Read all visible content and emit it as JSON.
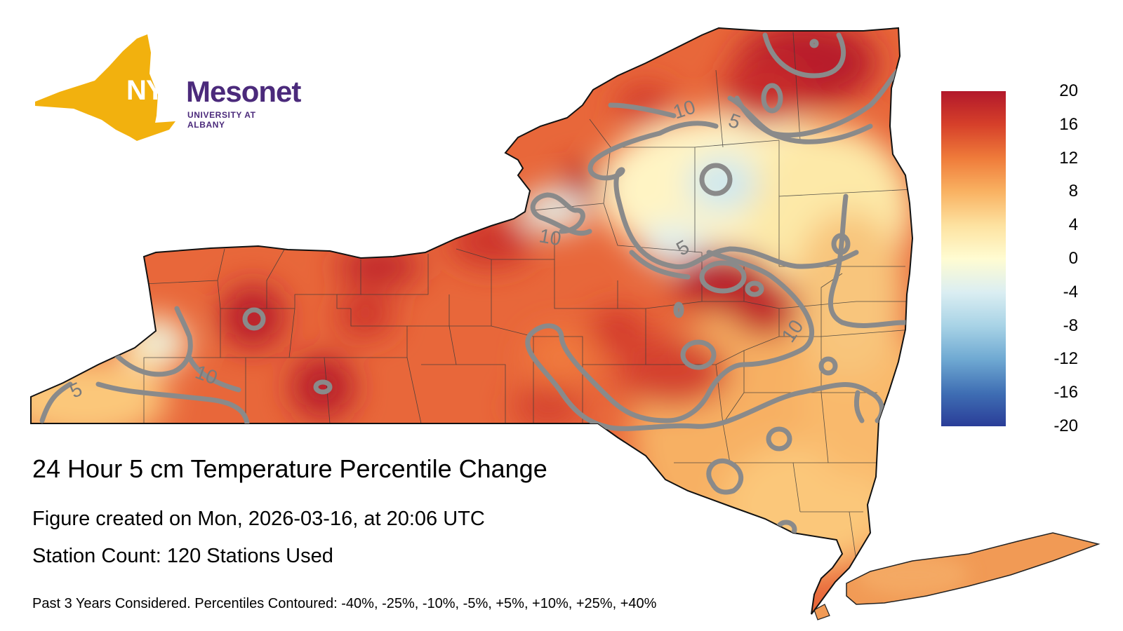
{
  "logo": {
    "nys": "NYS",
    "mesonet": "Mesonet",
    "university": "UNIVERSITY AT ALBANY",
    "shape_color": "#f2b10e",
    "text_color": "#4b2a7b"
  },
  "title": "24 Hour 5 cm Temperature Percentile Change",
  "created": "Figure created on Mon, 2026-03-16, at 20:06 UTC",
  "station_count": "Station Count: 120 Stations Used",
  "footnote": "Past 3 Years Considered. Percentiles Contoured: -40%, -25%, -10%, -5%, +5%, +10%, +25%, +40%",
  "colorbar": {
    "ticks": [
      "20",
      "16",
      "12",
      "8",
      "4",
      "0",
      "-4",
      "-8",
      "-12",
      "-16",
      "-20"
    ],
    "min": -20,
    "max": 20,
    "colors": [
      "#b2182b",
      "#d6402a",
      "#ef7b3a",
      "#f9b262",
      "#fde2a0",
      "#fffcd2",
      "#dbeef2",
      "#a8d3e6",
      "#6fa9d2",
      "#3f6fb4",
      "#2a3d98"
    ]
  },
  "map": {
    "contour_color": "#8a8a8a",
    "contour_labels": [
      {
        "text": "10"
      },
      {
        "text": "5"
      },
      {
        "text": "10"
      },
      {
        "text": "5"
      },
      {
        "text": "10"
      },
      {
        "text": "5"
      },
      {
        "text": "10"
      }
    ]
  }
}
